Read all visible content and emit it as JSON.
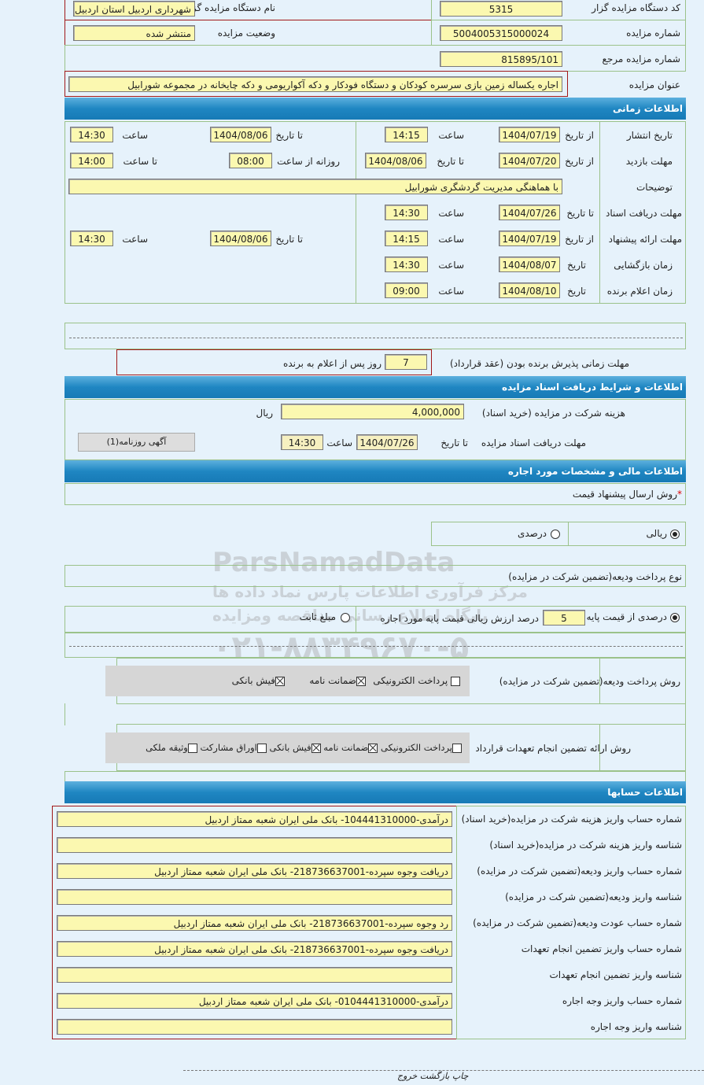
{
  "general": {
    "org_code_label": "کد دستگاه مزایده گزار",
    "org_code": "5315",
    "org_name_label": "نام دستگاه مزایده گزار",
    "org_name": "شهرداری اردبیل استان اردبیل",
    "auction_no_label": "شماره مزایده",
    "auction_no": "5004005315000024",
    "status_label": "وضعیت مزایده",
    "status": "منتشر شده",
    "ref_no_label": "شماره مزایده مرجع",
    "ref_no": "815895/101",
    "title_label": "عنوان مزایده",
    "title": "اجاره یکساله زمین بازی سرسره کودکان و دستگاه فودکار و دکه آکواریومی و دکه چایخانه در مجموعه شورابیل"
  },
  "timing": {
    "header": "اطلاعات زمانی",
    "from_date": "از تاریخ",
    "to_date": "تا تاریخ",
    "date": "تاریخ",
    "time": "ساعت",
    "to_time": "تا ساعت",
    "daily_from": "روزانه از ساعت",
    "publish_label": "تاریخ انتشار",
    "publish_from": "1404/07/19",
    "publish_from_time": "14:15",
    "publish_to": "1404/08/06",
    "publish_to_time": "14:30",
    "visit_label": "مهلت بازدید",
    "visit_from": "1404/07/20",
    "visit_to": "1404/08/06",
    "visit_daily_from": "08:00",
    "visit_to_time": "14:00",
    "notes_label": "توضیحات",
    "notes": "با هماهنگی مدیریت گردشگری شورابیل",
    "docs_label": "مهلت دریافت اسناد",
    "docs_to": "1404/07/26",
    "docs_time": "14:30",
    "offer_label": "مهلت ارائه پیشنهاد",
    "offer_from": "1404/07/19",
    "offer_from_time": "14:15",
    "offer_to": "1404/08/06",
    "offer_to_time": "14:30",
    "opening_label": "زمان بازگشایی",
    "opening_date": "1404/08/07",
    "opening_time": "14:30",
    "winner_label": "زمان اعلام برنده",
    "winner_date": "1404/08/10",
    "winner_time": "09:00",
    "acceptance_label": "مهلت زمانی پذیرش برنده بودن (عقد قرارداد)",
    "acceptance_days": "7",
    "acceptance_suffix": "روز پس از اعلام به برنده"
  },
  "documents": {
    "header": "اطلاعات و شرایط دریافت اسناد مزایده",
    "fee_label": "هزینه شرکت در مزایده (خرید اسناد)",
    "fee": "4,000,000",
    "currency": "ریال",
    "deadline_label": "مهلت دریافت اسناد مزایده",
    "to_date": "تا تاریخ",
    "date": "1404/07/26",
    "time_label": "ساعت",
    "time": "14:30",
    "ad_button": "آگهی روزنامه(1)"
  },
  "financial": {
    "header": "اطلاعات مالی و مشخصات مورد اجاره",
    "price_method_label": "روش ارسال پیشنهاد قیمت",
    "required_mark": "*",
    "rial": "ریالی",
    "percent": "درصدی",
    "rial_selected": true,
    "deposit_type_label": "نوع پرداخت ودیعه(تضمین شرکت در مزایده)",
    "deposit_percent_label": "درصدی از قیمت پایه",
    "deposit_percent": "5",
    "deposit_percent_suffix": "درصد ارزش ریالی قیمت پایه مورد اجاره",
    "fixed_amount": "مبلغ ثابت",
    "deposit_percent_selected": true,
    "deposit_method_label": "روش پرداخت ودیعه(تضمین شرکت در مزایده)",
    "deposit_methods": [
      {
        "label": "پرداخت الکترونیکی",
        "checked": false
      },
      {
        "label": "ضمانت نامه",
        "checked": true
      },
      {
        "label": "فیش بانکی",
        "checked": true
      }
    ],
    "guarantee_label": "روش ارائه تضمین انجام تعهدات قرارداد",
    "guarantee_methods": [
      {
        "label": "پرداخت الکترونیکی",
        "checked": false
      },
      {
        "label": "ضمانت نامه",
        "checked": true
      },
      {
        "label": "فیش بانکی",
        "checked": true
      },
      {
        "label": "اوراق مشارکت",
        "checked": false
      },
      {
        "label": "وثیقه ملکی",
        "checked": false
      }
    ]
  },
  "accounts": {
    "header": "اطلاعات حسابها",
    "rows": [
      {
        "label": "شماره حساب واریز هزینه شرکت در مزایده(خرید اسناد)",
        "value": "درآمدی-104441310000- بانک ملی ایران شعبه ممتاز اردبیل"
      },
      {
        "label": "شناسه واریز هزینه شرکت در مزایده(خرید اسناد)",
        "value": ""
      },
      {
        "label": "شماره حساب واریز ودیعه(تضمین شرکت در مزایده)",
        "value": "دریافت وجوه سپرده-218736637001- بانک ملی ایران شعبه ممتاز اردبیل"
      },
      {
        "label": "شناسه واریز ودیعه(تضمین شرکت در مزایده)",
        "value": ""
      },
      {
        "label": "شماره حساب عودت ودیعه(تضمین شرکت در مزایده)",
        "value": "رد وجوه سپرده-218736637001- بانک ملی ایران شعبه ممتاز اردبیل"
      },
      {
        "label": "شماره حساب واریز تضمین انجام تعهدات",
        "value": "دریافت وجوه سپرده-218736637001- بانک ملی ایران شعبه ممتاز اردبیل"
      },
      {
        "label": "شناسه واریز تضمین انجام تعهدات",
        "value": ""
      },
      {
        "label": "شماره حساب واریز وجه اجاره",
        "value": "درآمدی-0104441310000- بانک ملی ایران شعبه ممتاز اردبیل"
      },
      {
        "label": "شناسه واریز وجه اجاره",
        "value": ""
      }
    ]
  },
  "footer": {
    "print": "چاپ",
    "back": "بازگشت",
    "exit": "خروج"
  },
  "watermark": {
    "brand": "ParsNamadData",
    "line1": "مرکز فرآوری اطلاعات پارس نماد داده ها",
    "line2": "پایگاه اطلاع رسانی مناقصه ومزایده",
    "phone": "۰۲۱-۸۸۳۴۹۶۷۰-۵"
  }
}
